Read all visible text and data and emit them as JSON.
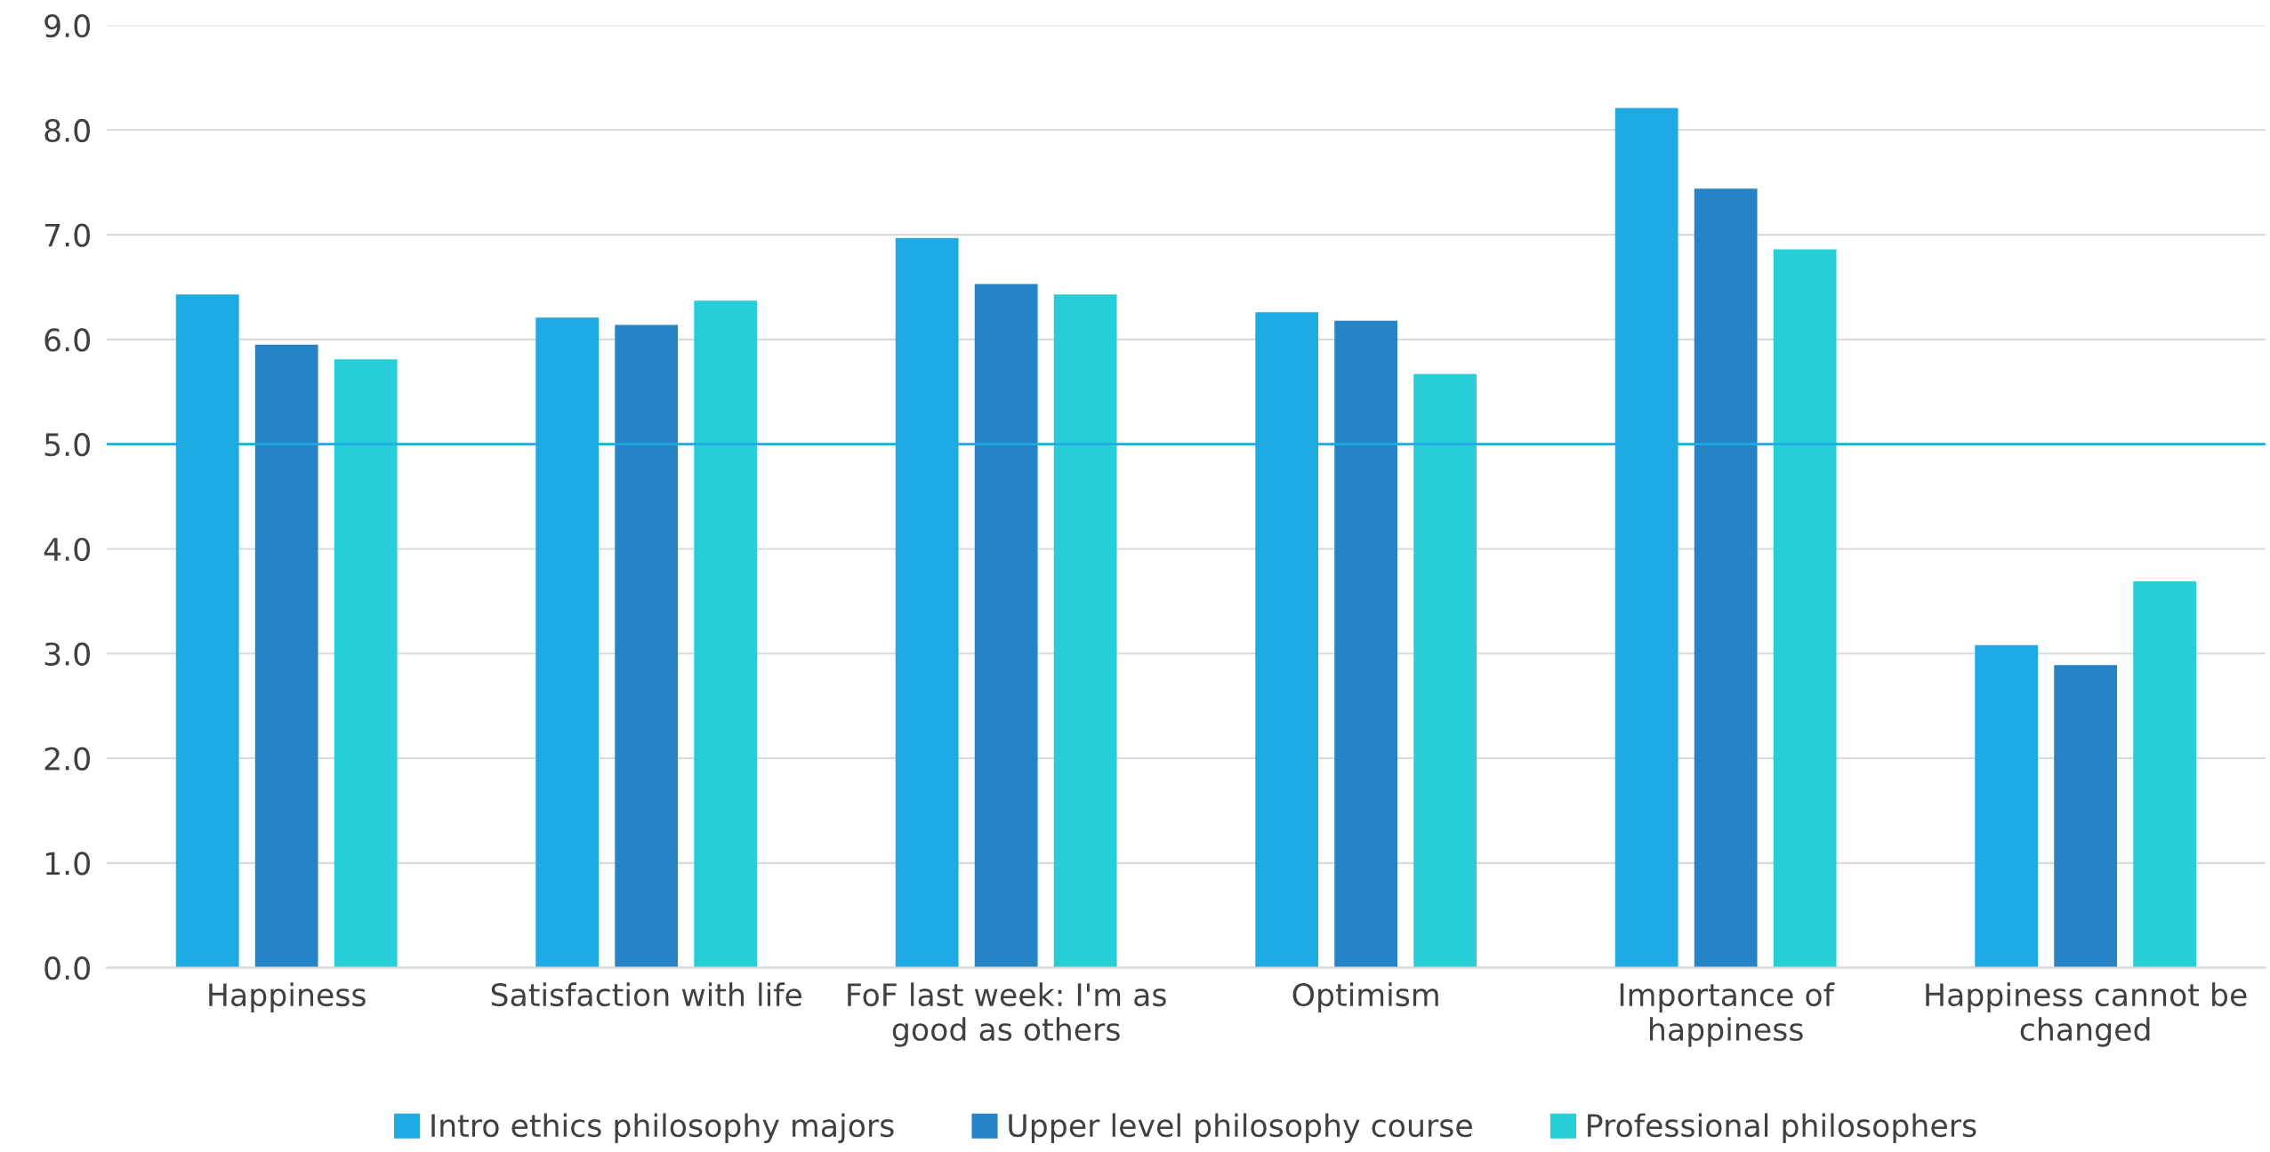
{
  "chart_data": {
    "type": "bar",
    "categories": [
      "Happiness",
      "Satisfaction with life",
      "FoF last week: I'm as\ngood as others",
      "Optimism",
      "Importance of\nhappiness",
      "Happiness cannot be\nchanged"
    ],
    "series": [
      {
        "name": "Intro ethics philosophy majors",
        "color": "#1eaae2",
        "values": [
          6.43,
          6.21,
          6.97,
          6.26,
          8.21,
          3.08
        ]
      },
      {
        "name": "Upper level philosophy course",
        "color": "#2683c6",
        "values": [
          5.95,
          6.14,
          6.53,
          6.18,
          7.44,
          2.89
        ]
      },
      {
        "name": "Professional philosophers",
        "color": "#27ced7",
        "values": [
          5.81,
          6.37,
          6.43,
          5.67,
          6.86,
          3.69
        ]
      }
    ],
    "ylim": [
      0,
      9
    ],
    "yticks": [
      {
        "value": 0,
        "label": "0.0"
      },
      {
        "value": 1,
        "label": "1.0"
      },
      {
        "value": 2,
        "label": "2.0"
      },
      {
        "value": 3,
        "label": "3.0"
      },
      {
        "value": 4,
        "label": "4.0"
      },
      {
        "value": 5,
        "label": "5.0"
      },
      {
        "value": 6,
        "label": "6.0"
      },
      {
        "value": 7,
        "label": "7.0"
      },
      {
        "value": 8,
        "label": "8.0"
      },
      {
        "value": 9,
        "label": "9.0"
      }
    ],
    "ref_lines": [
      {
        "axis": "y",
        "value": 5,
        "color": "#1eaae2"
      }
    ],
    "grid": "y",
    "legend": "bottom"
  }
}
